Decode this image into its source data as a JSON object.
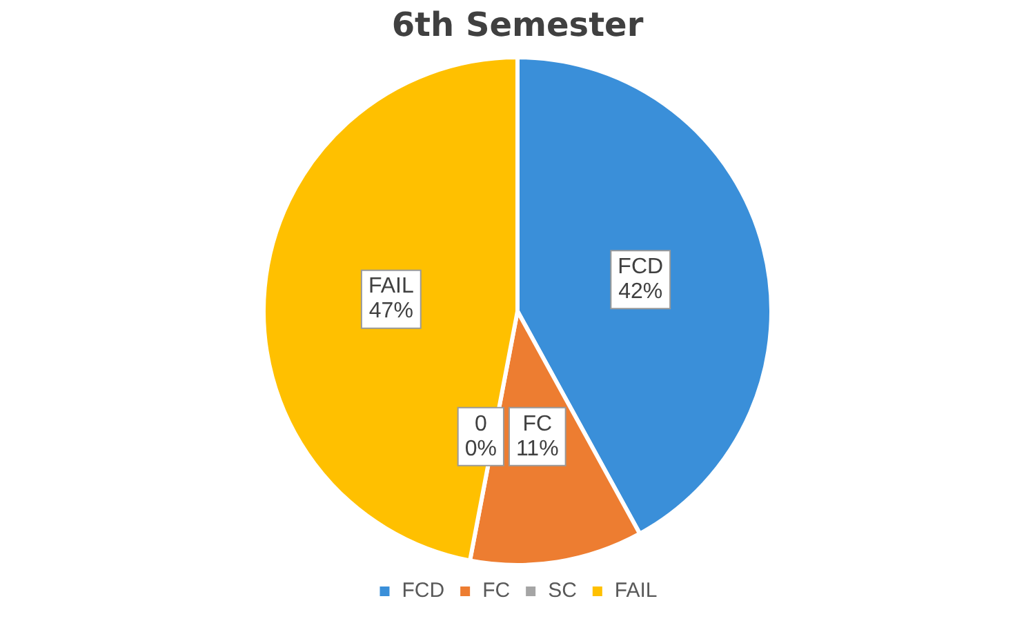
{
  "chart_data": {
    "type": "pie",
    "title": "6th Semester",
    "categories": [
      "FCD",
      "FC",
      "SC",
      "FAIL"
    ],
    "values": [
      42,
      11,
      0,
      47
    ],
    "colors": [
      "#3a8fd9",
      "#ed7d31",
      "#a5a5a5",
      "#ffc000"
    ],
    "value_labels": [
      "FCD\n42%",
      "FC\n11%",
      "0\n0%",
      "FAIL\n47%"
    ],
    "legend": "bottom"
  }
}
